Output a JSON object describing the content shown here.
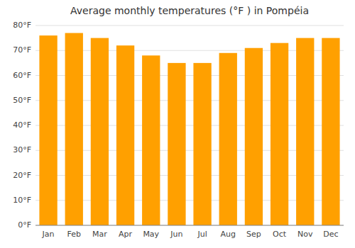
{
  "chart_data": {
    "type": "bar",
    "title": "Average monthly temperatures (°F ) in Pompéia",
    "categories": [
      "Jan",
      "Feb",
      "Mar",
      "Apr",
      "May",
      "Jun",
      "Jul",
      "Aug",
      "Sep",
      "Oct",
      "Nov",
      "Dec"
    ],
    "values": [
      76,
      77,
      75,
      72,
      68,
      65,
      65,
      69,
      71,
      73,
      75,
      75
    ],
    "color": "#FFA000",
    "ylim": [
      0,
      80
    ],
    "yticks": [
      {
        "value": 0,
        "label": "0°F"
      },
      {
        "value": 10,
        "label": "10°F"
      },
      {
        "value": 20,
        "label": "20°F"
      },
      {
        "value": 30,
        "label": "30°F"
      },
      {
        "value": 40,
        "label": "40°F"
      },
      {
        "value": 50,
        "label": "50°F"
      },
      {
        "value": 60,
        "label": "60°F"
      },
      {
        "value": 70,
        "label": "70°F"
      },
      {
        "value": 80,
        "label": "80°F"
      }
    ],
    "grid": true
  }
}
